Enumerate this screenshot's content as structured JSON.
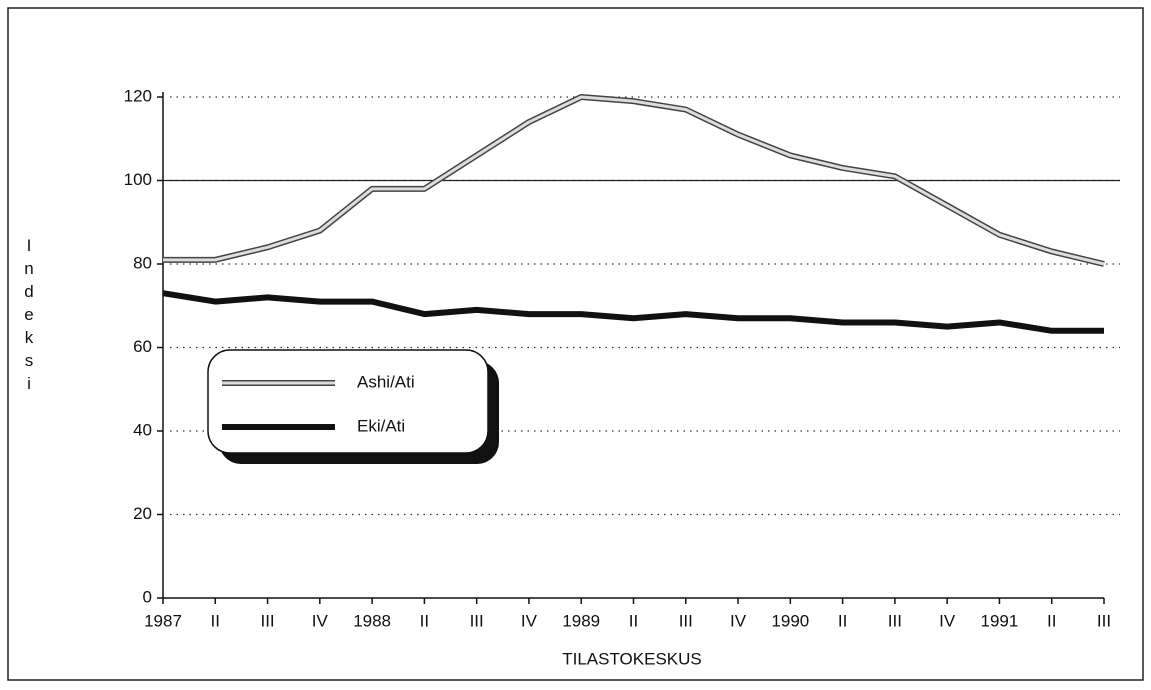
{
  "chart_data": {
    "type": "line",
    "y_label": "Indeksi",
    "x_label": "TILASTOKESKUS",
    "categories": [
      "1987",
      "II",
      "III",
      "IV",
      "1988",
      "II",
      "III",
      "IV",
      "1989",
      "II",
      "III",
      "IV",
      "1990",
      "II",
      "III",
      "IV",
      "1991",
      "II",
      "III"
    ],
    "series": [
      {
        "name": "Ashi/Ati",
        "color": "#dddddd",
        "values": [
          81,
          81,
          84,
          88,
          98,
          98,
          106,
          114,
          120,
          119,
          117,
          111,
          106,
          103,
          101,
          94,
          87,
          83,
          80
        ]
      },
      {
        "name": "Eki/Ati",
        "color": "#111111",
        "values": [
          73,
          71,
          72,
          71,
          71,
          68,
          69,
          68,
          68,
          67,
          68,
          67,
          67,
          66,
          66,
          65,
          66,
          64,
          64
        ]
      }
    ],
    "ylim": [
      0,
      120
    ],
    "yticks": [
      0,
      20,
      40,
      60,
      80,
      100,
      120
    ],
    "reference_line": 100,
    "grid": true
  }
}
